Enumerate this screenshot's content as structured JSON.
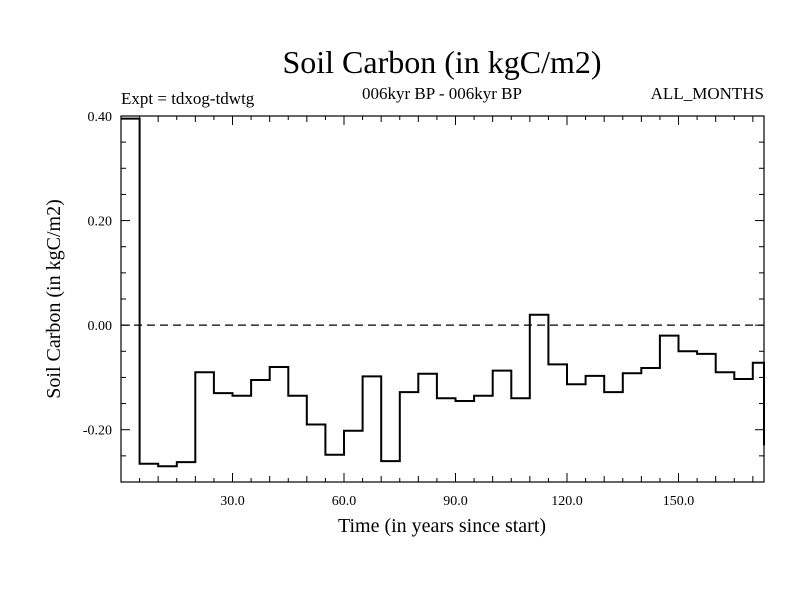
{
  "chart_data": {
    "type": "line",
    "style": "step",
    "title": "Soil Carbon (in kgC/m2)",
    "subtitle_left": "Expt = tdxog-tdwtg",
    "subtitle_center": "006kyr BP - 006kyr BP",
    "subtitle_right": "ALL_MONTHS",
    "xlabel": "Time (in years since start)",
    "ylabel": "Soil Carbon (in kgC/m2)",
    "xlim": [
      0,
      173
    ],
    "ylim": [
      -0.3,
      0.4
    ],
    "xticks": [
      30,
      60,
      90,
      120,
      150
    ],
    "xtick_labels": [
      "30.0",
      "60.0",
      "90.0",
      "120.0",
      "150.0"
    ],
    "yticks": [
      -0.2,
      0.0,
      0.2,
      0.4
    ],
    "ytick_labels": [
      "-0.20",
      "0.00",
      "0.20",
      "0.40"
    ],
    "reference_line": 0.0,
    "x": [
      0,
      5,
      10,
      15,
      20,
      25,
      30,
      35,
      40,
      45,
      50,
      55,
      60,
      65,
      70,
      75,
      80,
      85,
      90,
      95,
      100,
      105,
      110,
      115,
      120,
      125,
      130,
      135,
      140,
      145,
      150,
      155,
      160,
      165,
      170
    ],
    "values": [
      0.395,
      -0.265,
      -0.27,
      -0.262,
      -0.09,
      -0.13,
      -0.135,
      -0.105,
      -0.08,
      -0.135,
      -0.19,
      -0.248,
      -0.202,
      -0.098,
      -0.26,
      -0.128,
      -0.093,
      -0.14,
      -0.145,
      -0.135,
      -0.087,
      -0.14,
      0.02,
      -0.075,
      -0.113,
      -0.097,
      -0.128,
      -0.092,
      -0.082,
      -0.02,
      -0.05,
      -0.055,
      -0.09,
      -0.103,
      -0.072
    ],
    "end_x": 173,
    "end_value": -0.23
  }
}
